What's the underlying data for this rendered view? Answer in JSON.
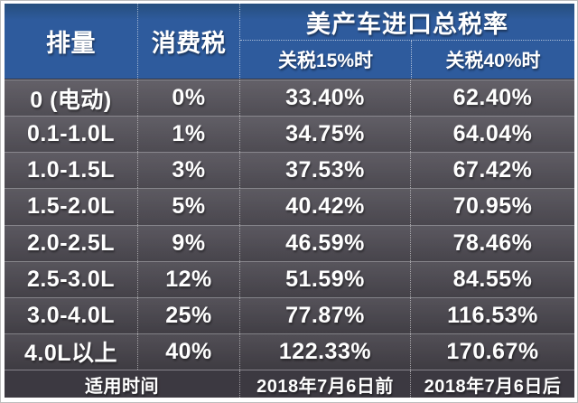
{
  "colors": {
    "header_blue": "#2e5b9d",
    "header_blue_dark": "#264e7d",
    "row_bg_top": "#5b5860",
    "row_bg_bottom": "#454249",
    "footer_bg": "#3c3941"
  },
  "header": {
    "displacement": "排量",
    "consumption_tax": "消费税",
    "group_title": "美产车进口总税率",
    "tariff_15": "关税15%时",
    "tariff_40": "关税40%时"
  },
  "footer": {
    "label": "适用时间",
    "before": "2018年7月6日前",
    "after": "2018年7月6日后"
  },
  "chart_data": {
    "type": "table",
    "title": "美产车进口总税率",
    "columns": [
      "排量",
      "消费税",
      "关税15%时",
      "关税40%时"
    ],
    "rows": [
      [
        "0 (电动)",
        "0%",
        "33.40%",
        "62.40%"
      ],
      [
        "0.1-1.0L",
        "1%",
        "34.75%",
        "64.04%"
      ],
      [
        "1.0-1.5L",
        "3%",
        "37.53%",
        "67.42%"
      ],
      [
        "1.5-2.0L",
        "5%",
        "40.42%",
        "70.95%"
      ],
      [
        "2.0-2.5L",
        "9%",
        "46.59%",
        "78.46%"
      ],
      [
        "2.5-3.0L",
        "12%",
        "51.59%",
        "84.55%"
      ],
      [
        "3.0-4.0L",
        "25%",
        "77.87%",
        "116.53%"
      ],
      [
        "4.0L以上",
        "40%",
        "122.33%",
        "170.67%"
      ]
    ],
    "footer_row": [
      "适用时间",
      "2018年7月6日前",
      "2018年7月6日后"
    ]
  }
}
